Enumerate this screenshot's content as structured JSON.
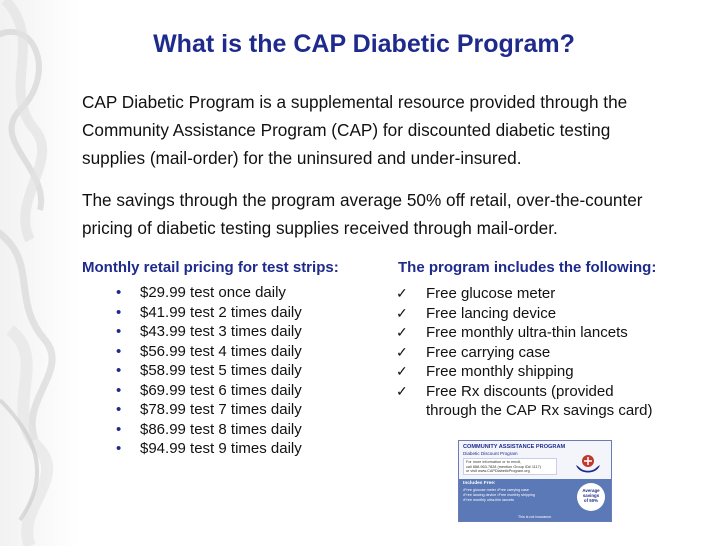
{
  "title": "What is the CAP Diabetic Program?",
  "paragraph1_lines": [
    "CAP Diabetic Program is a supplemental resource provided through the",
    "Community Assistance Program (CAP) for discounted diabetic testing",
    "supplies (mail-order) for the uninsured and under-insured."
  ],
  "paragraph2_lines": [
    "The savings through the program average 50% off retail, over-the-counter",
    "pricing of diabetic testing supplies received through mail-order."
  ],
  "left_column": {
    "heading": "Monthly retail pricing for test strips:",
    "items": [
      "$29.99 test once daily",
      "$41.99 test 2 times daily",
      "$43.99 test 3 times daily",
      "$56.99 test 4 times daily",
      "$58.99 test 5 times daily",
      "$69.99 test 6 times daily",
      "$78.99 test 7 times daily",
      "$86.99 test 8 times daily",
      "$94.99 test 9 times daily"
    ]
  },
  "right_column": {
    "heading": "The program includes the following:",
    "check_glyph": "✓",
    "items": [
      "Free glucose meter",
      "Free lancing device",
      "Free monthly ultra-thin lancets",
      "Free carrying case",
      "Free monthly shipping",
      "Free Rx discounts (provided"
    ],
    "continuation": "through the CAP Rx savings card)"
  },
  "card": {
    "title": "COMMUNITY ASSISTANCE PROGRAM",
    "subtitle": "Diabetic Discount Program",
    "info_lines": [
      "For more information or to enroll,",
      "call 888-963-7828 (mention Group ID# 1117)",
      "or visit www.CAPDiabeticProgram.org"
    ],
    "includes_label": "Includes Free:",
    "includes_lines": [
      "•Free glucose meter    •Free carrying case",
      "•Free lancing device    •Free monthly shipping",
      "•Free monthly ultra-thin lancets"
    ],
    "badge_lines": [
      "Average",
      "savings",
      "of 50%"
    ],
    "note": "This is not insurance."
  },
  "colors": {
    "heading_blue": "#1e2a8c",
    "card_band": "#5b79b7"
  }
}
